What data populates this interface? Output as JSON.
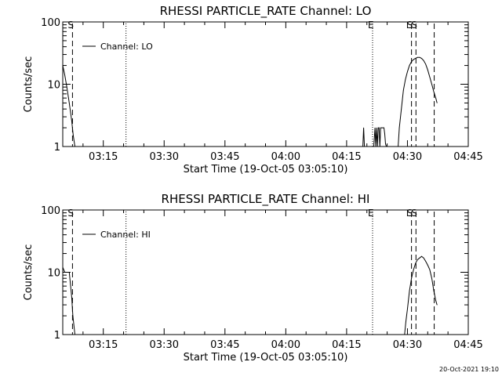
{
  "footer": {
    "timestamp": "20-Oct-2021 19:10"
  },
  "chart_data": [
    {
      "type": "line",
      "title": "RHESSI PARTICLE_RATE Channel: LO",
      "xlabel": "Start Time (19-Oct-05 03:05:10)",
      "ylabel": "Counts/sec",
      "y_scale": "log",
      "ylim": [
        1,
        100
      ],
      "xlim_minutes": [
        185,
        285
      ],
      "x_ticks": [
        {
          "t": 195,
          "label": "03:15"
        },
        {
          "t": 210,
          "label": "03:30"
        },
        {
          "t": 225,
          "label": "03:45"
        },
        {
          "t": 240,
          "label": "04:00"
        },
        {
          "t": 255,
          "label": "04:15"
        },
        {
          "t": 270,
          "label": "04:30"
        },
        {
          "t": 285,
          "label": "04:45"
        }
      ],
      "y_ticks": [
        {
          "v": 1,
          "label": "1"
        },
        {
          "v": 10,
          "label": "10"
        },
        {
          "v": 100,
          "label": "100"
        }
      ],
      "legend": {
        "position": "top-left",
        "label": "Channel: LO"
      },
      "markers": [
        {
          "t": 187.4,
          "style": "dashed",
          "label": "S"
        },
        {
          "t": 200.6,
          "style": "dotted",
          "label": ""
        },
        {
          "t": 261.4,
          "style": "dotted",
          "label": "E"
        },
        {
          "t": 271.0,
          "style": "dashed",
          "label": "S"
        },
        {
          "t": 272.1,
          "style": "dashed",
          "label": "S"
        },
        {
          "t": 276.6,
          "style": "dashed",
          "label": ""
        }
      ],
      "series": [
        {
          "x": [
            185,
            185.5,
            186,
            186.6,
            187.2,
            187.6,
            188.0,
            null,
            259.0,
            259.2,
            259.4,
            null,
            261.7,
            262.0,
            262.2,
            262.4,
            262.6,
            262.8,
            263.0,
            263.2,
            263.4,
            263.6,
            263.8,
            264.0,
            264.2,
            264.4,
            264.6,
            264.8,
            null,
            267.7,
            268.0,
            268.5,
            269.0,
            269.5,
            270.0,
            270.5,
            271.0,
            271.5,
            272.0,
            272.5,
            273.0,
            273.5,
            274.0,
            274.5,
            275.0,
            275.5,
            276.0,
            276.5,
            277.0,
            277.3
          ],
          "y": [
            20,
            14,
            9,
            5,
            2.6,
            1.5,
            1.0,
            null,
            1,
            2,
            1,
            null,
            1,
            2,
            1,
            2,
            1,
            2,
            2,
            1,
            2,
            2,
            2,
            2,
            2,
            1.6,
            1.1,
            1,
            null,
            1,
            2,
            4,
            8,
            12,
            16,
            20,
            23,
            25,
            26,
            27,
            27,
            26,
            24,
            21,
            17,
            13,
            10,
            7.5,
            6,
            5
          ]
        }
      ]
    },
    {
      "type": "line",
      "title": "RHESSI PARTICLE_RATE Channel: HI",
      "xlabel": "Start Time (19-Oct-05 03:05:10)",
      "ylabel": "Counts/sec",
      "y_scale": "log",
      "ylim": [
        1,
        100
      ],
      "xlim_minutes": [
        185,
        285
      ],
      "x_ticks": [
        {
          "t": 195,
          "label": "03:15"
        },
        {
          "t": 210,
          "label": "03:30"
        },
        {
          "t": 225,
          "label": "03:45"
        },
        {
          "t": 240,
          "label": "04:00"
        },
        {
          "t": 255,
          "label": "04:15"
        },
        {
          "t": 270,
          "label": "04:30"
        },
        {
          "t": 285,
          "label": "04:45"
        }
      ],
      "y_ticks": [
        {
          "v": 1,
          "label": "1"
        },
        {
          "v": 10,
          "label": "10"
        },
        {
          "v": 100,
          "label": "100"
        }
      ],
      "legend": {
        "position": "top-left",
        "label": "Channel: HI"
      },
      "markers": [
        {
          "t": 187.4,
          "style": "dashed",
          "label": "S"
        },
        {
          "t": 200.6,
          "style": "dotted",
          "label": ""
        },
        {
          "t": 261.4,
          "style": "dotted",
          "label": "E"
        },
        {
          "t": 271.0,
          "style": "dashed",
          "label": "S"
        },
        {
          "t": 272.1,
          "style": "dashed",
          "label": "S"
        },
        {
          "t": 276.6,
          "style": "dashed",
          "label": ""
        }
      ],
      "series": [
        {
          "x": [
            185,
            185.5,
            186,
            186.6,
            187.2,
            187.5,
            188.0,
            null,
            269.3,
            269.6,
            270.0,
            270.5,
            271.0,
            271.5,
            272.0,
            272.5,
            273.0,
            273.5,
            274.0,
            274.5,
            275.0,
            275.5,
            276.0,
            276.5,
            277.0,
            277.3
          ],
          "y": [
            12,
            10,
            10,
            10,
            4,
            2,
            1.0,
            null,
            1,
            1.6,
            2.6,
            5,
            8,
            11,
            14,
            16,
            17,
            18,
            17,
            15,
            13,
            11,
            8,
            5,
            3.5,
            3
          ]
        }
      ]
    }
  ]
}
